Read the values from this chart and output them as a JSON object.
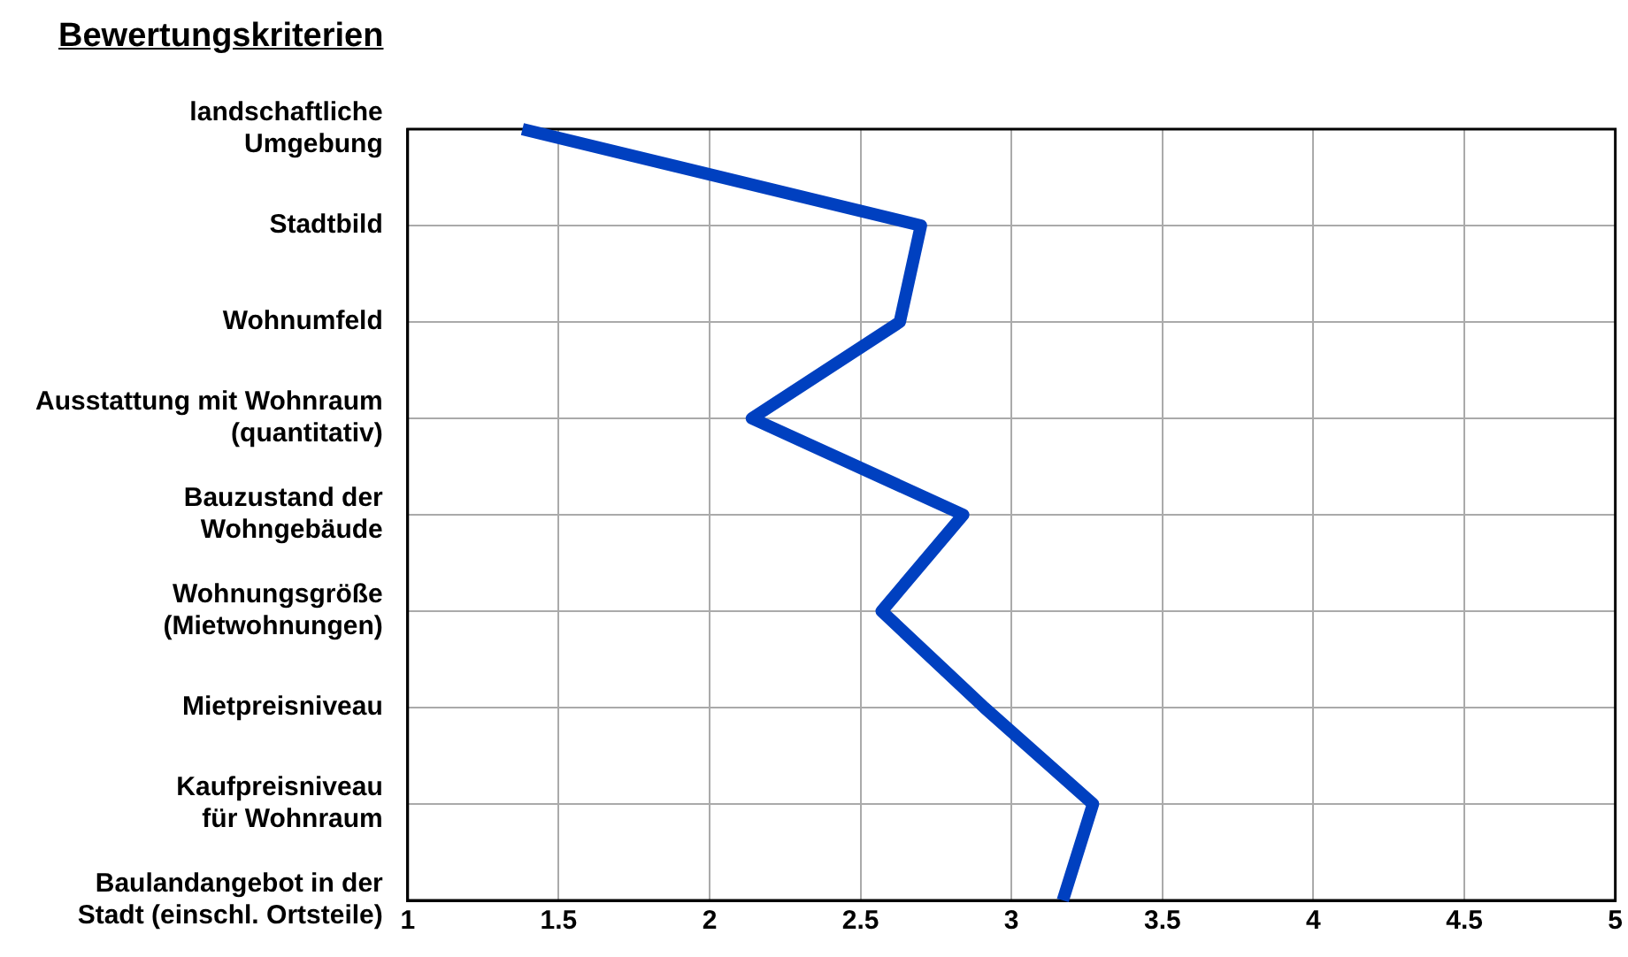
{
  "chart_data": {
    "type": "line",
    "title": "Bewertungskriterien",
    "orientation": "horizontal",
    "categories": [
      "landschaftliche\nUmgebung",
      "Stadtbild",
      "Wohnumfeld",
      "Ausstattung mit Wohnraum\n(quantitativ)",
      "Bauzustand der\nWohngebäude",
      "Wohnungsgröße\n(Mietwohnungen)",
      "Mietpreisniveau",
      "Kaufpreisniveau\nfür Wohnraum",
      "Baulandangebot in der\nStadt (einschl. Ortsteile)"
    ],
    "series": [
      {
        "color": "#0040c0",
        "values": [
          1.38,
          2.7,
          2.63,
          2.14,
          2.84,
          2.57,
          2.91,
          3.27,
          3.17
        ]
      }
    ],
    "xlim": [
      1,
      5
    ],
    "xticks": [
      1,
      1.5,
      2,
      2.5,
      3,
      3.5,
      4,
      4.5,
      5
    ],
    "grid": true,
    "legend": false,
    "marker": "none",
    "line_style": "solid"
  }
}
